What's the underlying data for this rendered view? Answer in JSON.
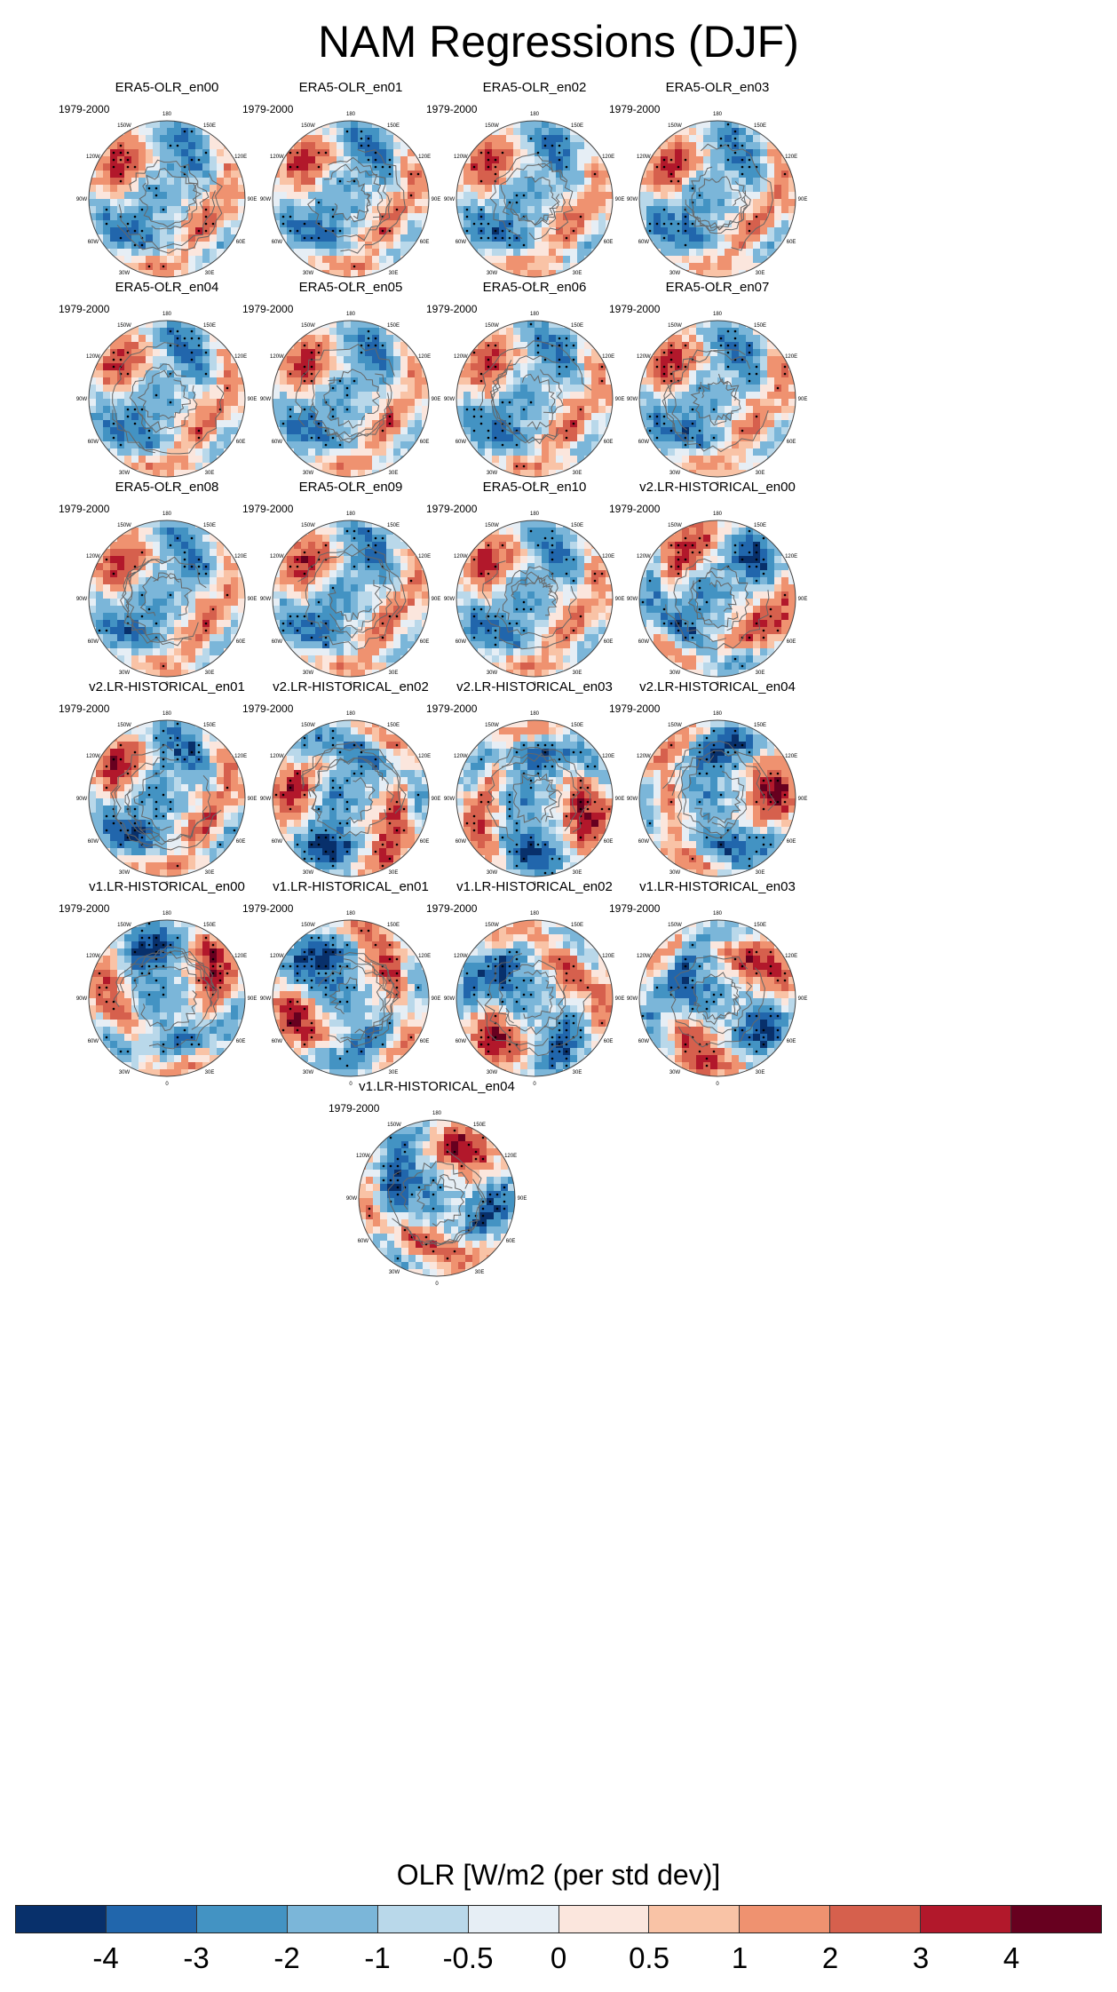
{
  "chart_data": {
    "type": "heatmap",
    "title": "NAM Regressions (DJF)",
    "projection": "north-polar-stereographic",
    "period": "1979-2000",
    "longitude_labels": [
      "180",
      "150E",
      "120E",
      "90E",
      "60E",
      "30E",
      "0",
      "30W",
      "60W",
      "90W",
      "120W",
      "150W"
    ],
    "panels": [
      {
        "name": "ERA5-OLR_en00",
        "period": "1979-2000"
      },
      {
        "name": "ERA5-OLR_en01",
        "period": "1979-2000"
      },
      {
        "name": "ERA5-OLR_en02",
        "period": "1979-2000"
      },
      {
        "name": "ERA5-OLR_en03",
        "period": "1979-2000"
      },
      {
        "name": "ERA5-OLR_en04",
        "period": "1979-2000"
      },
      {
        "name": "ERA5-OLR_en05",
        "period": "1979-2000"
      },
      {
        "name": "ERA5-OLR_en06",
        "period": "1979-2000"
      },
      {
        "name": "ERA5-OLR_en07",
        "period": "1979-2000"
      },
      {
        "name": "ERA5-OLR_en08",
        "period": "1979-2000"
      },
      {
        "name": "ERA5-OLR_en09",
        "period": "1979-2000"
      },
      {
        "name": "ERA5-OLR_en10",
        "period": "1979-2000"
      },
      {
        "name": "v2.LR-HISTORICAL_en00",
        "period": "1979-2000"
      },
      {
        "name": "v2.LR-HISTORICAL_en01",
        "period": "1979-2000"
      },
      {
        "name": "v2.LR-HISTORICAL_en02",
        "period": "1979-2000"
      },
      {
        "name": "v2.LR-HISTORICAL_en03",
        "period": "1979-2000"
      },
      {
        "name": "v2.LR-HISTORICAL_en04",
        "period": "1979-2000"
      },
      {
        "name": "v1.LR-HISTORICAL_en00",
        "period": "1979-2000"
      },
      {
        "name": "v1.LR-HISTORICAL_en01",
        "period": "1979-2000"
      },
      {
        "name": "v1.LR-HISTORICAL_en02",
        "period": "1979-2000"
      },
      {
        "name": "v1.LR-HISTORICAL_en03",
        "period": "1979-2000"
      },
      {
        "name": "v1.LR-HISTORICAL_en04",
        "period": "1979-2000"
      }
    ],
    "colorbar": {
      "label": "OLR [W/m2 (per std dev)]",
      "ticks": [
        "-4",
        "-3",
        "-2",
        "-1",
        "-0.5",
        "0",
        "0.5",
        "1",
        "2",
        "3",
        "4"
      ],
      "colors": [
        "#08306b",
        "#2166ac",
        "#4393c3",
        "#7bb6d9",
        "#b9d8ea",
        "#e6eef5",
        "#fbe6dd",
        "#f9c3a6",
        "#ef9270",
        "#d6604d",
        "#b2182b",
        "#67001f"
      ]
    }
  }
}
